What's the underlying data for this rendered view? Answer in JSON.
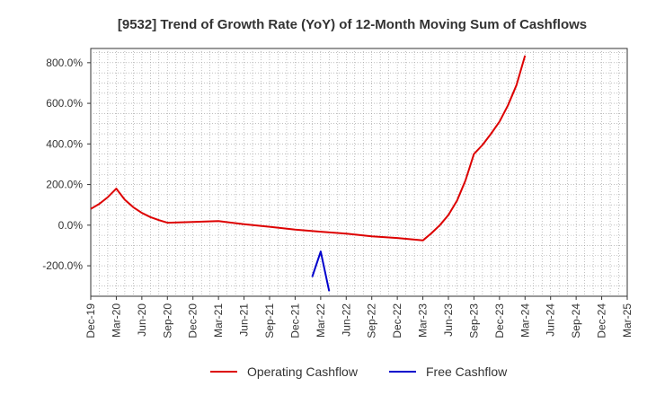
{
  "chart_data": {
    "type": "line",
    "title": "[9532]  Trend of Growth Rate (YoY) of 12-Month Moving Sum of Cashflows",
    "xlabel": "",
    "ylabel": "",
    "ylim": [
      -350,
      870
    ],
    "y_ticks": [
      "800.0%",
      "600.0%",
      "400.0%",
      "200.0%",
      "0.0%",
      "-200.0%"
    ],
    "y_tick_values": [
      800,
      600,
      400,
      200,
      0,
      -200
    ],
    "x_ticks": [
      "Dec-19",
      "Mar-20",
      "Jun-20",
      "Sep-20",
      "Dec-20",
      "Mar-21",
      "Jun-21",
      "Sep-21",
      "Dec-21",
      "Mar-22",
      "Jun-22",
      "Sep-22",
      "Dec-22",
      "Mar-23",
      "Jun-23",
      "Sep-23",
      "Dec-23",
      "Mar-24",
      "Jun-24",
      "Sep-24",
      "Dec-24",
      "Mar-25"
    ],
    "grid": true,
    "legend_position": "bottom",
    "series": [
      {
        "name": "Operating Cashflow",
        "color": "#dd0000",
        "points": [
          [
            "Dec-19",
            80
          ],
          [
            "Jan-20",
            105
          ],
          [
            "Feb-20",
            138
          ],
          [
            "Mar-20",
            180
          ],
          [
            "Apr-20",
            125
          ],
          [
            "May-20",
            88
          ],
          [
            "Jun-20",
            60
          ],
          [
            "Jul-20",
            40
          ],
          [
            "Aug-20",
            25
          ],
          [
            "Sep-20",
            12
          ],
          [
            "Dec-20",
            16
          ],
          [
            "Mar-21",
            20
          ],
          [
            "Jun-21",
            5
          ],
          [
            "Sep-21",
            -8
          ],
          [
            "Dec-21",
            -22
          ],
          [
            "Mar-22",
            -32
          ],
          [
            "Jun-22",
            -42
          ],
          [
            "Sep-22",
            -55
          ],
          [
            "Dec-22",
            -63
          ],
          [
            "Mar-23",
            -75
          ],
          [
            "Apr-23",
            -40
          ],
          [
            "May-23",
            0
          ],
          [
            "Jun-23",
            50
          ],
          [
            "Jul-23",
            120
          ],
          [
            "Aug-23",
            220
          ],
          [
            "Sep-23",
            350
          ],
          [
            "Oct-23",
            395
          ],
          [
            "Nov-23",
            450
          ],
          [
            "Dec-23",
            510
          ],
          [
            "Jan-24",
            590
          ],
          [
            "Feb-24",
            690
          ],
          [
            "Mar-24",
            835
          ]
        ]
      },
      {
        "name": "Free Cashflow",
        "color": "#0000cc",
        "points": [
          [
            "Feb-22",
            -255
          ],
          [
            "Mar-22",
            -130
          ],
          [
            "Apr-22",
            -325
          ]
        ]
      }
    ]
  }
}
